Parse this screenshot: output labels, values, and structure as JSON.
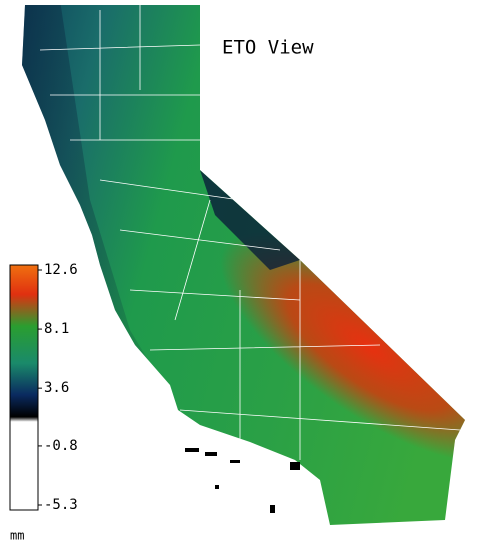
{
  "title": "ETO View",
  "legend": {
    "range": [
      -5.3,
      12.6
    ],
    "ticks": [
      12.6,
      8.1,
      3.6,
      -0.8,
      -5.3
    ],
    "unit": "mm"
  }
}
